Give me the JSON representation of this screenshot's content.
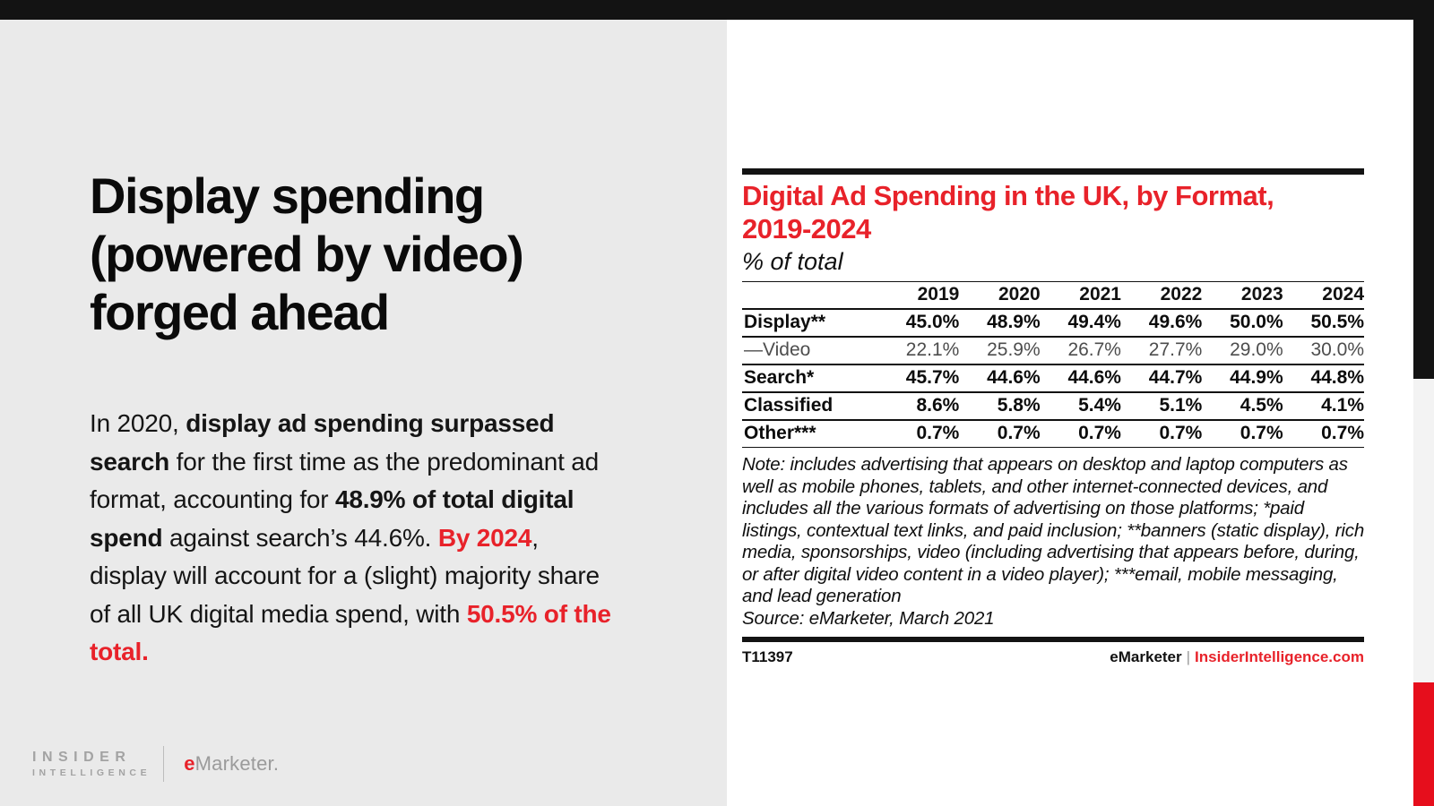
{
  "colors": {
    "accent_red": "#e8222a",
    "edge_red": "#e60e1c",
    "bar_black": "#131313",
    "left_panel_gray": "#eaeaea",
    "edge_strip_gray": "#f3f3f3",
    "video_row_gray": "#4d4d4d",
    "logo_gray": "#a3a3a3"
  },
  "left_panel": {
    "headline_lines": [
      "Display spending",
      "(powered by video)",
      "forged ahead"
    ],
    "body_segments": [
      {
        "text": "In 2020, "
      },
      {
        "text": "display ad spending surpassed search",
        "bold": true
      },
      {
        "text": " for the first time as the predominant ad format, accounting for "
      },
      {
        "text": "48.9% of total digital spend",
        "bold": true
      },
      {
        "text": " against search’s 44.6%. "
      },
      {
        "text": "By 2024",
        "bold": true,
        "red": true
      },
      {
        "text": ", display will account for a (slight) majority share of all UK digital media spend, with "
      },
      {
        "text": "50.5% of the total.",
        "bold": true,
        "red": true
      }
    ],
    "logo": {
      "insider": "INSIDER",
      "intelligence": "INTELLIGENCE",
      "emarketer_e": "e",
      "emarketer_rest": "Marketer."
    }
  },
  "chart": {
    "title_lines": [
      "Digital Ad Spending in the UK, by Format,",
      "2019-2024"
    ],
    "subtitle": "% of total",
    "note": "Note: includes advertising that appears on desktop and laptop computers as well as mobile phones, tablets, and other internet-connected devices, and includes all the various formats of advertising on those platforms; *paid listings, contextual text links, and paid inclusion; **banners (static display), rich media, sponsorships, video (including advertising that appears before, during, or after digital video content in a video player); ***email, mobile messaging, and lead generation",
    "source": "Source: eMarketer, March 2021",
    "footer_id": "T11397",
    "footer_brand": "eMarketer",
    "footer_sep": "|",
    "footer_link": "InsiderIntelligence.com"
  },
  "chart_data": {
    "type": "table",
    "title": "Digital Ad Spending in the UK, by Format, 2019-2024",
    "subtitle": "% of total",
    "categories": [
      "2019",
      "2020",
      "2021",
      "2022",
      "2023",
      "2024"
    ],
    "series": [
      {
        "name": "Display**",
        "values": [
          45.0,
          48.9,
          49.4,
          49.6,
          50.0,
          50.5
        ],
        "style": "main"
      },
      {
        "name": "—Video",
        "values": [
          22.1,
          25.9,
          26.7,
          27.7,
          29.0,
          30.0
        ],
        "style": "sub"
      },
      {
        "name": "Search*",
        "values": [
          45.7,
          44.6,
          44.6,
          44.7,
          44.9,
          44.8
        ],
        "style": "main"
      },
      {
        "name": "Classified",
        "values": [
          8.6,
          5.8,
          5.4,
          5.1,
          4.5,
          4.1
        ],
        "style": "main"
      },
      {
        "name": "Other***",
        "values": [
          0.7,
          0.7,
          0.7,
          0.7,
          0.7,
          0.7
        ],
        "style": "main"
      }
    ],
    "value_format": "percent_1dp",
    "note": "Note: includes advertising that appears on desktop and laptop computers as well as mobile phones, tablets, and other internet-connected devices, and includes all the various formats of advertising on those platforms; *paid listings, contextual text links, and paid inclusion; **banners (static display), rich media, sponsorships, video (including advertising that appears before, during, or after digital video content in a video player); ***email, mobile messaging, and lead generation",
    "source": "Source: eMarketer, March 2021"
  }
}
